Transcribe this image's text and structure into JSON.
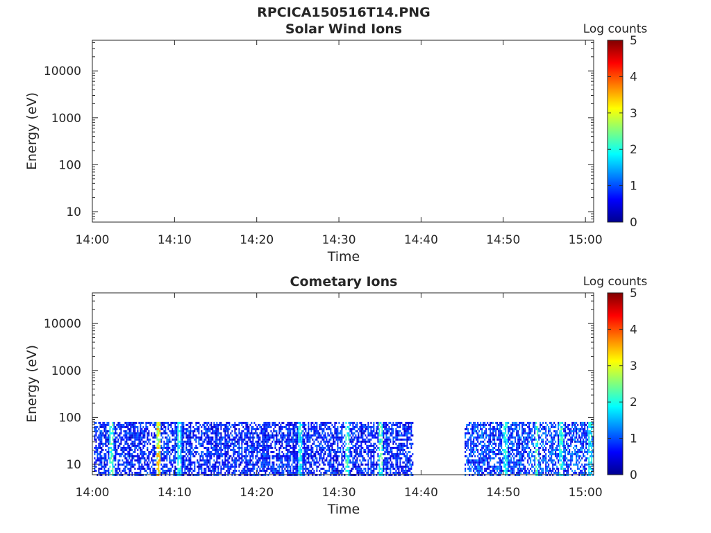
{
  "figure_title": "RPCICA150516T14.PNG",
  "chart_data": [
    {
      "type": "heatmap",
      "title": "Solar Wind Ions",
      "xlabel": "Time",
      "ylabel": "Energy (eV)",
      "x_ticks": [
        "14:00",
        "14:10",
        "14:20",
        "14:30",
        "14:40",
        "14:50",
        "15:00"
      ],
      "x_range_minutes": [
        0,
        61
      ],
      "y_ticks": [
        10,
        100,
        1000,
        10000
      ],
      "y_scale": "log",
      "y_range": [
        6,
        45000
      ],
      "colorbar": {
        "label": "Log counts",
        "ticks": [
          0,
          1,
          2,
          3,
          4,
          5
        ],
        "range": [
          0,
          5
        ],
        "colormap": "jet"
      },
      "data_segments": []
    },
    {
      "type": "heatmap",
      "title": "Cometary Ions",
      "xlabel": "Time",
      "ylabel": "Energy (eV)",
      "x_ticks": [
        "14:00",
        "14:10",
        "14:20",
        "14:30",
        "14:40",
        "14:50",
        "15:00"
      ],
      "x_range_minutes": [
        0,
        61
      ],
      "y_ticks": [
        10,
        100,
        1000,
        10000
      ],
      "y_scale": "log",
      "y_range": [
        6,
        45000
      ],
      "colorbar": {
        "label": "Log counts",
        "ticks": [
          0,
          1,
          2,
          3,
          4,
          5
        ],
        "range": [
          0,
          5
        ],
        "colormap": "jet"
      },
      "data_segments": [
        {
          "t_start": 0.2,
          "t_end": 38.9,
          "energy_min": 6,
          "energy_max": 80,
          "typical_log_counts": 1.0,
          "max_log_counts": 3.8
        },
        {
          "t_start": 45.3,
          "t_end": 61.0,
          "energy_min": 6,
          "energy_max": 80,
          "typical_log_counts": 1.2,
          "max_log_counts": 2.8
        }
      ],
      "highlights": [
        {
          "t": 2.2,
          "log_counts": 2.6
        },
        {
          "t": 8.0,
          "log_counts": 3.8
        },
        {
          "t": 10.5,
          "log_counts": 2.2
        },
        {
          "t": 25.2,
          "log_counts": 2.3
        },
        {
          "t": 31.0,
          "log_counts": 2.4
        },
        {
          "t": 35.0,
          "log_counts": 2.5
        },
        {
          "t": 50.2,
          "log_counts": 2.2
        },
        {
          "t": 54.0,
          "log_counts": 2.7
        },
        {
          "t": 57.0,
          "log_counts": 2.4
        },
        {
          "t": 60.5,
          "log_counts": 2.2
        }
      ]
    }
  ]
}
